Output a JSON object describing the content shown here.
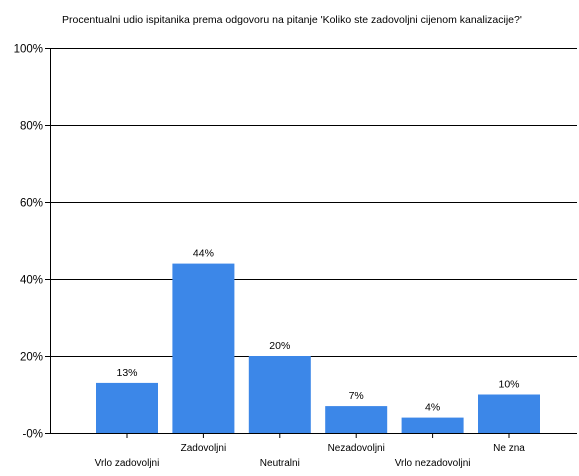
{
  "chart_data": {
    "type": "bar",
    "title": "Procentualni udio ispitanika prema odgovoru na pitanje 'Koliko ste zadovoljni cijenom kanalizacije?'",
    "categories": [
      "Vrlo zadovoljni",
      "Zadovoljni",
      "Neutralni",
      "Nezadovoljni",
      "Vrlo nezadovoljni",
      "Ne zna"
    ],
    "values": [
      13,
      44,
      20,
      7,
      4,
      10
    ],
    "data_labels": [
      "13%",
      "44%",
      "20%",
      "7%",
      "4%",
      "10%"
    ],
    "y_ticks": [
      "-0%",
      "20%",
      "40%",
      "60%",
      "80%",
      "100%"
    ],
    "y_tick_values": [
      0,
      20,
      40,
      60,
      80,
      100
    ],
    "ylim": [
      0,
      100
    ],
    "xlabel": "",
    "ylabel": "",
    "grid": true,
    "legend": "none",
    "colors": {
      "bar": "#3c87e8",
      "grid": "#000000",
      "axis": "#000000",
      "text": "#000000"
    }
  }
}
